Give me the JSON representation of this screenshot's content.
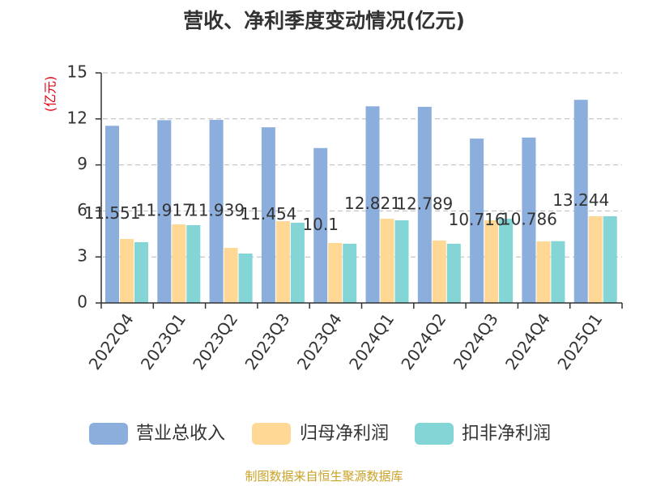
{
  "source": "制图数据来自恒生聚源数据库",
  "chart_data": {
    "type": "bar",
    "title": "营收、净利季度变动情况(亿元)",
    "ylabel": "(亿元)",
    "ylim": [
      0,
      15
    ],
    "yticks": [
      0,
      3,
      6,
      9,
      12,
      15
    ],
    "grid": true,
    "legend": "bottom",
    "categories": [
      "2022Q4",
      "2023Q1",
      "2023Q2",
      "2023Q3",
      "2023Q4",
      "2024Q1",
      "2024Q2",
      "2024Q3",
      "2024Q4",
      "2025Q1"
    ],
    "series": [
      {
        "name": "营业总收入",
        "color": "#8caedd",
        "data_labels": true,
        "values": [
          11.551,
          11.917,
          11.939,
          11.454,
          10.1,
          12.821,
          12.789,
          10.716,
          10.786,
          13.244
        ]
      },
      {
        "name": "归母净利润",
        "color": "#fed894",
        "data_labels": false,
        "values": [
          4.17,
          5.12,
          3.59,
          5.33,
          3.91,
          5.49,
          4.07,
          5.39,
          4.01,
          5.65
        ]
      },
      {
        "name": "扣非净利润",
        "color": "#83d5d6",
        "data_labels": false,
        "values": [
          3.96,
          5.07,
          3.22,
          5.23,
          3.86,
          5.39,
          3.86,
          5.49,
          4.03,
          5.65
        ]
      }
    ]
  }
}
